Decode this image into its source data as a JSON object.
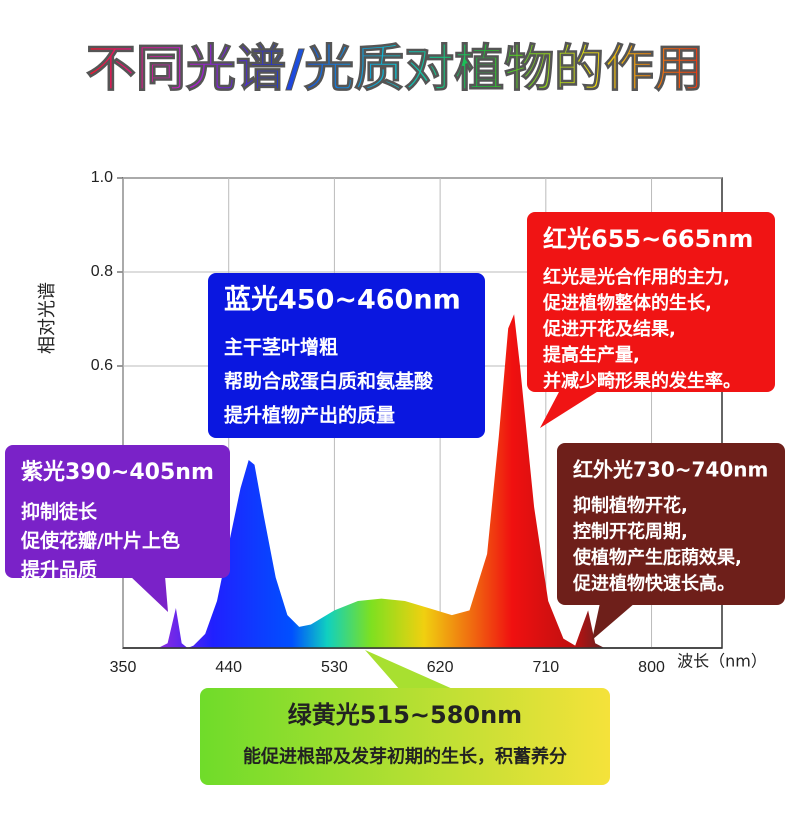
{
  "chart_data": {
    "type": "area",
    "title": "不同光谱/光质对植物的作用",
    "xlabel": "波长（nm）",
    "ylabel": "相对光谱",
    "x": [
      380,
      388,
      395,
      400,
      405,
      410,
      420,
      430,
      440,
      450,
      457,
      462,
      470,
      480,
      490,
      500,
      510,
      530,
      550,
      570,
      590,
      610,
      630,
      645,
      660,
      670,
      678,
      683,
      688,
      700,
      712,
      725,
      735,
      740,
      746,
      752,
      760
    ],
    "values": [
      0,
      0.01,
      0.085,
      0.01,
      0,
      0.005,
      0.03,
      0.1,
      0.22,
      0.34,
      0.4,
      0.39,
      0.28,
      0.15,
      0.07,
      0.045,
      0.05,
      0.08,
      0.1,
      0.105,
      0.1,
      0.085,
      0.07,
      0.08,
      0.2,
      0.45,
      0.68,
      0.71,
      0.6,
      0.3,
      0.1,
      0.02,
      0.005,
      0.04,
      0.08,
      0.01,
      0
    ],
    "xlim": [
      350,
      860
    ],
    "ylim": [
      0,
      1
    ],
    "xticks": [
      350,
      440,
      530,
      620,
      710,
      800
    ],
    "yticks": [
      {
        "value": 0.6,
        "label": "0.6"
      },
      {
        "value": 0.8,
        "label": "0.8"
      },
      {
        "value": 1,
        "label": "1.0"
      }
    ],
    "grid": true,
    "annotations": [
      {
        "title": "蓝光450~460nm",
        "lines": [
          "主干茎叶增粗",
          "帮助合成蛋白质和氨基酸",
          "提升植物产出的质量"
        ],
        "color": "#0a17e0"
      },
      {
        "title": "红光655~665nm",
        "lines": [
          "红光是光合作用的主力,",
          "促进植物整体的生长,",
          "促进开花及结果,",
          "提高生产量,",
          "并减少畸形果的发生率。"
        ],
        "color": "#f01414"
      },
      {
        "title": "紫光390~405nm",
        "lines": [
          "抑制徒长",
          "促使花瓣/叶片上色",
          "提升品质"
        ],
        "color": "#7a22c8"
      },
      {
        "title": "红外光730~740nm",
        "lines": [
          "抑制植物开花,",
          "控制开花周期,",
          "使植物产生庇荫效果,",
          "促进植物快速长高。"
        ],
        "color": "#6e1f1a"
      },
      {
        "title": "绿黄光515~580nm",
        "lines": [
          "能促进根部及发芽初期的生长，积蓄养分"
        ],
        "color": "#9be22a"
      }
    ]
  }
}
